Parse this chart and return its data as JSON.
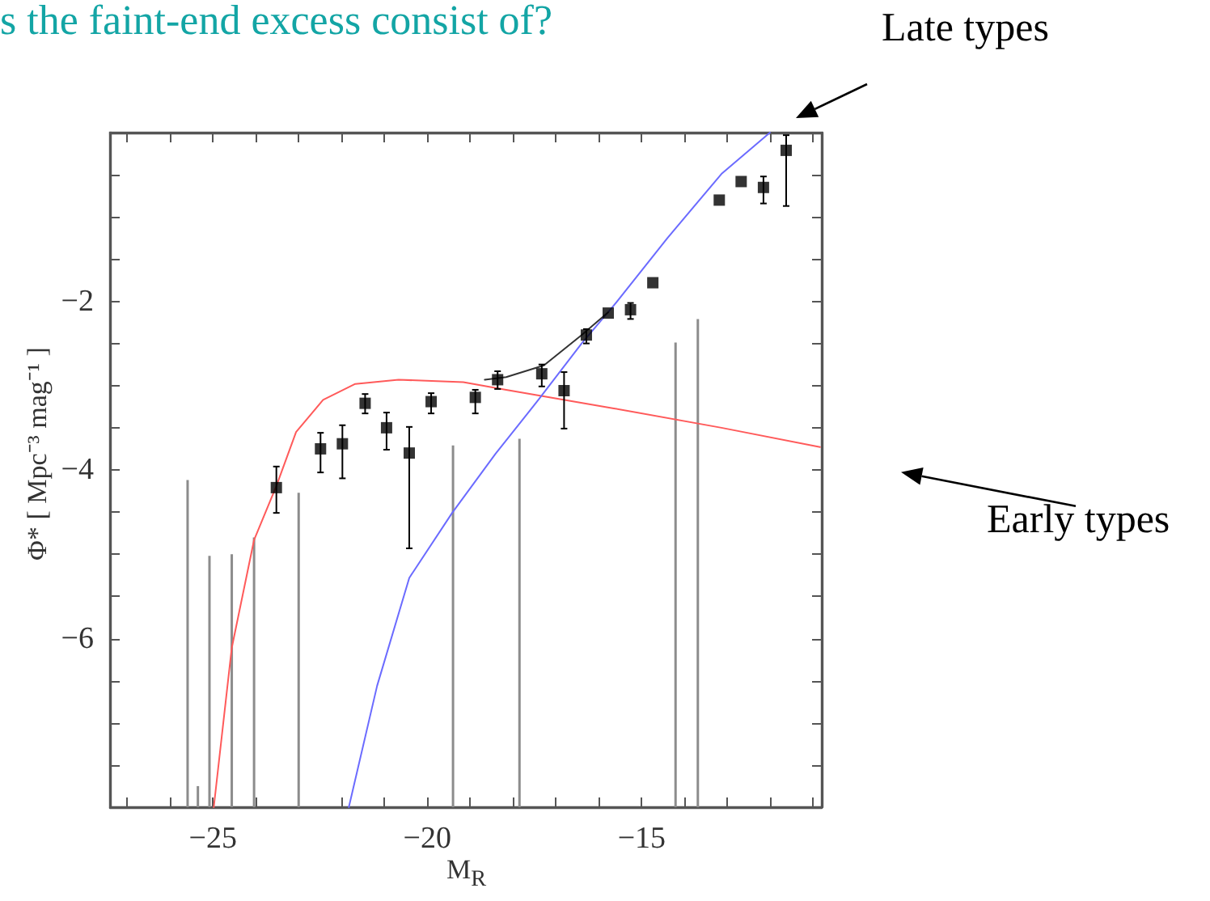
{
  "chart_data": {
    "type": "scatter",
    "title": "s the faint-end excess consist of?",
    "xlabel": "M$_{R}$",
    "ylabel": "Φ* [ Mpc⁻³ mag⁻¹ ]",
    "annotations": [
      "Late types",
      "Early types"
    ],
    "xlim": [
      -27.4,
      -10.8
    ],
    "ylim": [
      -8,
      0
    ],
    "xticks": [
      {
        "value": -27,
        "label": null
      },
      {
        "value": -26,
        "label": null
      },
      -25,
      {
        "value": -24,
        "label": null
      },
      {
        "value": -23,
        "label": null
      },
      {
        "value": -22,
        "label": null
      },
      {
        "value": -21,
        "label": null
      },
      -20,
      {
        "value": -19,
        "label": null
      },
      {
        "value": -18,
        "label": null
      },
      {
        "value": -17,
        "label": null
      },
      {
        "value": -16,
        "label": null
      },
      -15,
      {
        "value": -14,
        "label": null
      },
      {
        "value": -13,
        "label": null
      },
      {
        "value": -12,
        "label": null
      },
      {
        "value": -11,
        "label": null
      }
    ],
    "yticks": [
      {
        "value": -7.5,
        "label": null
      },
      {
        "value": -7,
        "label": null
      },
      {
        "value": -6.5,
        "label": null
      },
      -6,
      {
        "value": -5.5,
        "label": null
      },
      {
        "value": -5,
        "label": null
      },
      {
        "value": -4.5,
        "label": null
      },
      -4,
      {
        "value": -3.5,
        "label": null
      },
      {
        "value": -3,
        "label": null
      },
      {
        "value": -2.5,
        "label": null
      },
      -2,
      {
        "value": -1.5,
        "label": null
      },
      {
        "value": -1,
        "label": null
      },
      {
        "value": -0.5,
        "label": null
      }
    ],
    "grid": false,
    "marker": "square",
    "series": [
      {
        "type": "bar",
        "color": "#8c8c8c",
        "x": [
          -25.59,
          -25.35,
          -25.08,
          -24.56,
          -24.04,
          -23.0,
          -19.4,
          -17.85,
          -14.21,
          -13.69
        ],
        "base": [
          -8,
          -8,
          -8,
          -8,
          -8,
          -8,
          -8,
          -8,
          -8,
          -8
        ],
        "values": [
          3.88,
          0.25,
          2.98,
          3.0,
          3.2,
          3.73,
          4.29,
          4.37,
          5.51,
          5.79
        ]
      },
      {
        "type": "line",
        "color": "#ff5a5a",
        "line_style": "solid",
        "marker": "none",
        "x": [
          -24.98,
          -24.56,
          -24.04,
          -23.52,
          -23.06,
          -22.43,
          -21.68,
          -20.67,
          -19.16,
          -18.16,
          -15.65,
          -13.14,
          -10.84
        ],
        "values": [
          -8,
          -6.11,
          -4.83,
          -4.19,
          -3.55,
          -3.17,
          -2.98,
          -2.93,
          -2.96,
          -3.05,
          -3.27,
          -3.5,
          -3.73
        ]
      },
      {
        "type": "line",
        "color": "#6b6bff",
        "line_style": "solid",
        "marker": "none",
        "x": [
          -21.83,
          -21.17,
          -20.42,
          -19.42,
          -18.41,
          -17.41,
          -16.4,
          -15.65,
          -14.4,
          -13.14,
          -12.01
        ],
        "values": [
          -8,
          -6.56,
          -5.28,
          -4.51,
          -3.81,
          -3.17,
          -2.5,
          -2.05,
          -1.25,
          -0.49,
          0
        ]
      },
      {
        "type": "line",
        "color": "#333333",
        "line_style": "solid",
        "marker": "none",
        "x": [
          -18.66,
          -18.16,
          -17.28,
          -16.4,
          -15.78
        ],
        "values": [
          -2.93,
          -2.9,
          -2.76,
          -2.4,
          -2.13
        ]
      },
      {
        "color": "#000000",
        "x": [
          -23.52,
          -22.49,
          -21.98,
          -21.45,
          -20.95,
          -20.42,
          -19.91,
          -18.88,
          -18.36,
          -17.33,
          -16.81,
          -16.29,
          -15.78,
          -15.26,
          -14.74,
          -13.19,
          -12.68,
          -12.16,
          -11.63
        ],
        "values": [
          -4.21,
          -3.75,
          -3.69,
          -3.21,
          -3.5,
          -3.8,
          -3.19,
          -3.14,
          -2.93,
          -2.86,
          -3.06,
          -2.4,
          -2.14,
          -2.1,
          -1.78,
          -0.8,
          -0.58,
          -0.65,
          -0.21
        ],
        "errors": [
          [
            -4.51,
            -3.96
          ],
          [
            -4.03,
            -3.56
          ],
          [
            -4.1,
            -3.47
          ],
          [
            -3.33,
            -3.1
          ],
          [
            -3.76,
            -3.32
          ],
          [
            -4.93,
            -3.49
          ],
          [
            -3.33,
            -3.09
          ],
          [
            -3.33,
            -3.05
          ],
          [
            -3.04,
            -2.83
          ],
          [
            -3.01,
            -2.75
          ],
          [
            -3.51,
            -2.84
          ],
          [
            -2.5,
            -2.33
          ],
          null,
          [
            -2.21,
            -2.02
          ],
          null,
          null,
          null,
          [
            -0.84,
            -0.52
          ],
          [
            -0.87,
            -0.03
          ]
        ]
      }
    ]
  }
}
